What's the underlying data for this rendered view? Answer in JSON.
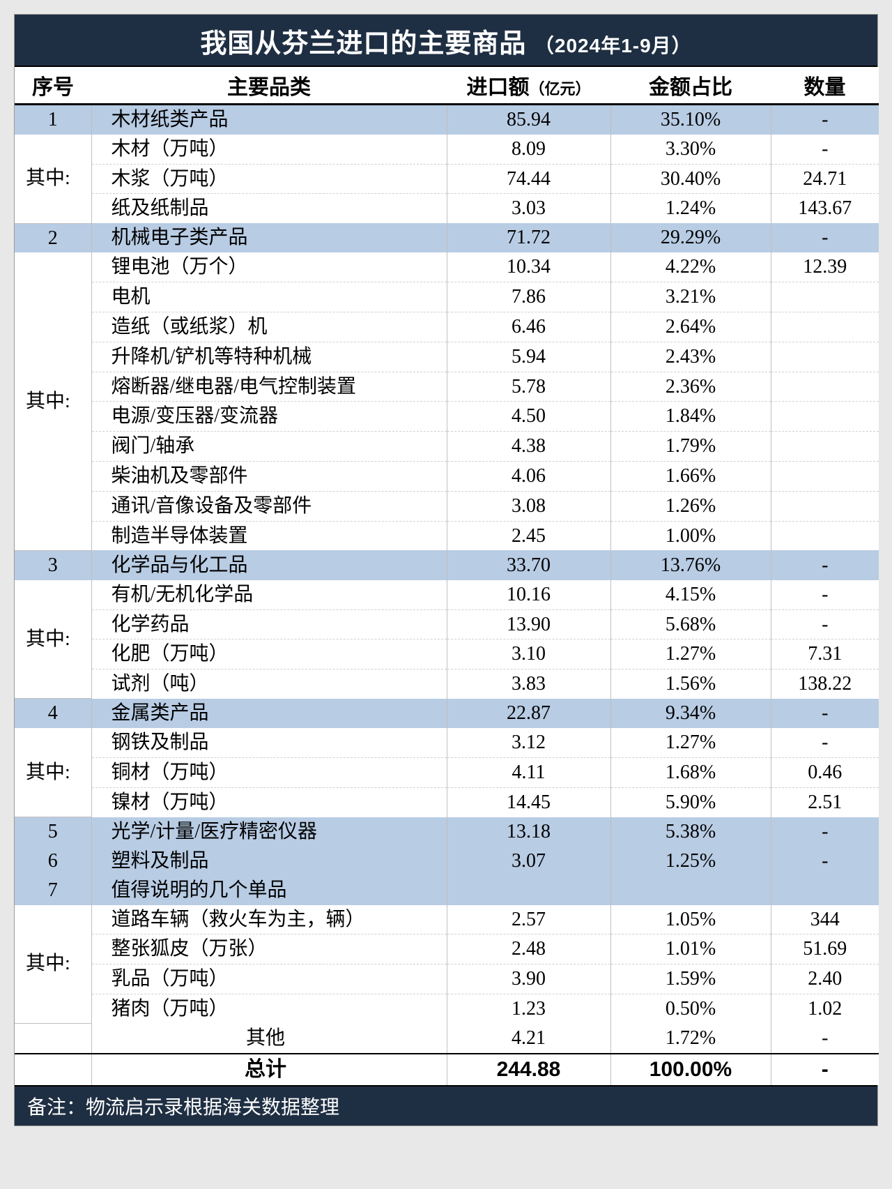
{
  "title_main": "我国从芬兰进口的主要商品",
  "title_sub": "（2024年1-9月）",
  "columns": {
    "idx": "序号",
    "name": "主要品类",
    "amt": "进口额",
    "amt_unit": "（亿元）",
    "pct": "金额占比",
    "qty": "数量"
  },
  "group_label": "其中:",
  "other_row": {
    "name": "其他",
    "amt": "4.21",
    "pct": "1.72%",
    "qty": "-"
  },
  "total_row": {
    "name": "总计",
    "amt": "244.88",
    "pct": "100.00%",
    "qty": "-"
  },
  "footer": "备注：物流启示录根据海关数据整理",
  "colors": {
    "header_bg": "#1f2f43",
    "category_bg": "#b8cce4",
    "grid": "#bfbfbf",
    "text": "#000000"
  },
  "categories": [
    {
      "idx": "1",
      "name": "木材纸类产品",
      "amt": "85.94",
      "pct": "35.10%",
      "qty": "-",
      "items": [
        {
          "name": "木材（万吨）",
          "amt": "8.09",
          "pct": "3.30%",
          "qty": "-"
        },
        {
          "name": "木浆（万吨）",
          "amt": "74.44",
          "pct": "30.40%",
          "qty": "24.71"
        },
        {
          "name": "纸及纸制品",
          "amt": "3.03",
          "pct": "1.24%",
          "qty": "143.67"
        }
      ]
    },
    {
      "idx": "2",
      "name": "机械电子类产品",
      "amt": "71.72",
      "pct": "29.29%",
      "qty": "-",
      "items": [
        {
          "name": "锂电池（万个）",
          "amt": "10.34",
          "pct": "4.22%",
          "qty": "12.39"
        },
        {
          "name": "电机",
          "amt": "7.86",
          "pct": "3.21%",
          "qty": ""
        },
        {
          "name": "造纸（或纸浆）机",
          "amt": "6.46",
          "pct": "2.64%",
          "qty": ""
        },
        {
          "name": "升降机/铲机等特种机械",
          "amt": "5.94",
          "pct": "2.43%",
          "qty": ""
        },
        {
          "name": "熔断器/继电器/电气控制装置",
          "amt": "5.78",
          "pct": "2.36%",
          "qty": ""
        },
        {
          "name": "电源/变压器/变流器",
          "amt": "4.50",
          "pct": "1.84%",
          "qty": ""
        },
        {
          "name": "阀门/轴承",
          "amt": "4.38",
          "pct": "1.79%",
          "qty": ""
        },
        {
          "name": "柴油机及零部件",
          "amt": "4.06",
          "pct": "1.66%",
          "qty": ""
        },
        {
          "name": "通讯/音像设备及零部件",
          "amt": "3.08",
          "pct": "1.26%",
          "qty": ""
        },
        {
          "name": "制造半导体装置",
          "amt": "2.45",
          "pct": "1.00%",
          "qty": ""
        }
      ]
    },
    {
      "idx": "3",
      "name": "化学品与化工品",
      "amt": "33.70",
      "pct": "13.76%",
      "qty": "-",
      "items": [
        {
          "name": "有机/无机化学品",
          "amt": "10.16",
          "pct": "4.15%",
          "qty": "-"
        },
        {
          "name": "化学药品",
          "amt": "13.90",
          "pct": "5.68%",
          "qty": "-"
        },
        {
          "name": "化肥（万吨）",
          "amt": "3.10",
          "pct": "1.27%",
          "qty": "7.31"
        },
        {
          "name": "试剂（吨）",
          "amt": "3.83",
          "pct": "1.56%",
          "qty": "138.22"
        }
      ]
    },
    {
      "idx": "4",
      "name": "金属类产品",
      "amt": "22.87",
      "pct": "9.34%",
      "qty": "-",
      "items": [
        {
          "name": "钢铁及制品",
          "amt": "3.12",
          "pct": "1.27%",
          "qty": "-"
        },
        {
          "name": "铜材（万吨）",
          "amt": "4.11",
          "pct": "1.68%",
          "qty": "0.46"
        },
        {
          "name": "镍材（万吨）",
          "amt": "14.45",
          "pct": "5.90%",
          "qty": "2.51"
        }
      ]
    },
    {
      "idx": "5",
      "name": "光学/计量/医疗精密仪器",
      "amt": "13.18",
      "pct": "5.38%",
      "qty": "-",
      "items": []
    },
    {
      "idx": "6",
      "name": "塑料及制品",
      "amt": "3.07",
      "pct": "1.25%",
      "qty": "-",
      "items": []
    },
    {
      "idx": "7",
      "name": "值得说明的几个单品",
      "amt": "",
      "pct": "",
      "qty": "",
      "items": [
        {
          "name": "道路车辆（救火车为主，辆）",
          "amt": "2.57",
          "pct": "1.05%",
          "qty": "344"
        },
        {
          "name": "整张狐皮（万张）",
          "amt": "2.48",
          "pct": "1.01%",
          "qty": "51.69"
        },
        {
          "name": "乳品（万吨）",
          "amt": "3.90",
          "pct": "1.59%",
          "qty": "2.40"
        },
        {
          "name": "猪肉（万吨）",
          "amt": "1.23",
          "pct": "0.50%",
          "qty": "1.02"
        }
      ]
    }
  ]
}
